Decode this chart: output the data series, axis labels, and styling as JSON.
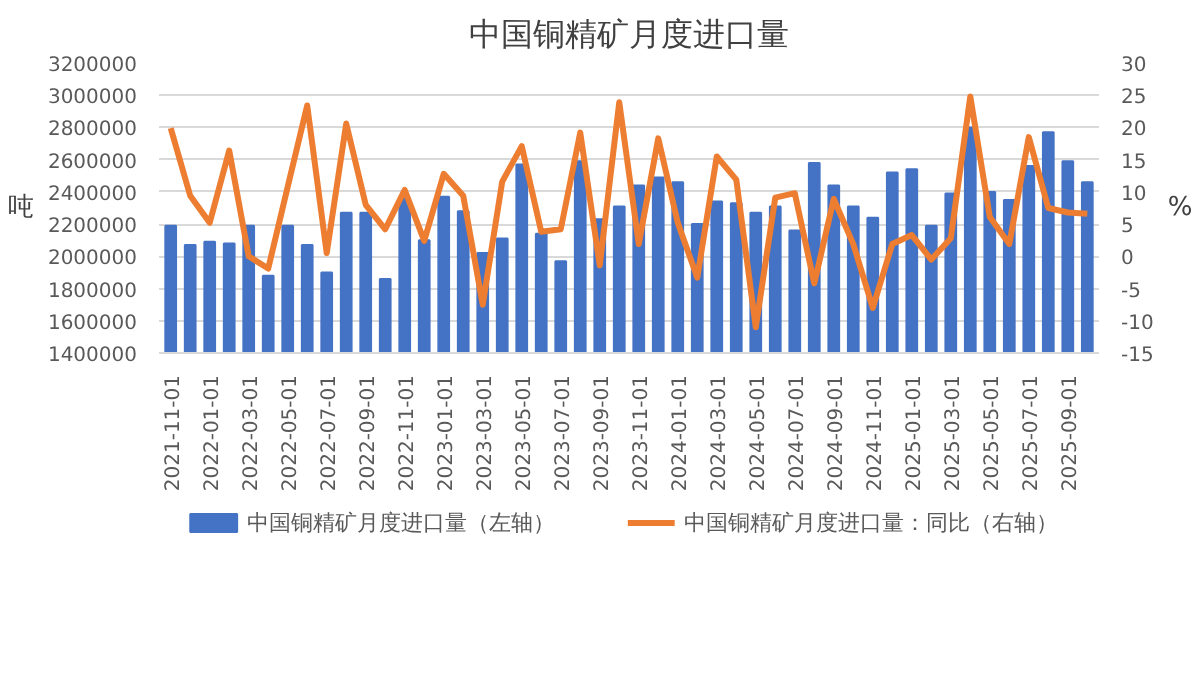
{
  "chart_data": {
    "type": "bar",
    "title": "中国铜精矿月度进口量",
    "ylabel": "吨",
    "y2label": "%",
    "categories": [
      "2021-11-01",
      null,
      "2022-01-01",
      null,
      "2022-03-01",
      null,
      "2022-05-01",
      null,
      "2022-07-01",
      null,
      "2022-09-01",
      null,
      "2022-11-01",
      null,
      "2023-01-01",
      null,
      "2023-03-01",
      null,
      "2023-05-01",
      null,
      "2023-07-01",
      null,
      "2023-09-01",
      null,
      "2023-11-01",
      null,
      "2024-01-01",
      null,
      "2024-03-01",
      null,
      "2024-05-01",
      null,
      "2024-07-01",
      null,
      "2024-09-01",
      null,
      "2024-11-01",
      null,
      "2025-01-01",
      null,
      "2025-03-01",
      null,
      "2025-05-01",
      null,
      "2025-07-01",
      null,
      "2025-09-01",
      null
    ],
    "series": [
      {
        "name": "中国铜精矿月度进口量（左轴）",
        "color": "#4472c4",
        "values": [
          2190000,
          2070000,
          2090000,
          2080000,
          2190000,
          1880000,
          2190000,
          2070000,
          1900000,
          2270000,
          2270000,
          1860000,
          2360000,
          2100000,
          2370000,
          2280000,
          2020000,
          2110000,
          2570000,
          2140000,
          1970000,
          2590000,
          2230000,
          2310000,
          2440000,
          2490000,
          2460000,
          2200000,
          2340000,
          2330000,
          2270000,
          2310000,
          2160000,
          2580000,
          2440000,
          2310000,
          2240000,
          2520000,
          2540000,
          2190000,
          2390000,
          2800000,
          2400000,
          2350000,
          2560000,
          2770000,
          2590000,
          2460000
        ]
      },
      {
        "name": "中国铜精矿月度进口量：同比（右轴）",
        "type": "line",
        "axis": "y2",
        "color": "#ed7d31",
        "values": [
          19.9,
          9.4,
          5.2,
          16.4,
          0.0,
          -1.9,
          10.8,
          23.4,
          0.5,
          20.6,
          8.0,
          4.2,
          10.3,
          2.4,
          12.8,
          9.4,
          -7.5,
          11.6,
          17.1,
          3.8,
          4.2,
          19.2,
          -1.4,
          23.9,
          1.9,
          18.3,
          5.2,
          -3.3,
          15.5,
          11.9,
          -11.0,
          9.1,
          9.8,
          -4.2,
          8.9,
          1.9,
          -8.0,
          1.9,
          3.3,
          -0.5,
          2.8,
          24.8,
          6.1,
          1.9,
          18.5,
          7.5,
          6.8,
          6.6
        ]
      }
    ],
    "ylim": [
      1400000,
      3200000
    ],
    "yticks": [
      1400000,
      1600000,
      1800000,
      2000000,
      2200000,
      2400000,
      2600000,
      2800000,
      3000000,
      3200000
    ],
    "y2lim": [
      -15,
      30
    ],
    "y2ticks": [
      -15,
      -10,
      -5,
      0,
      5,
      10,
      15,
      20,
      25,
      30
    ],
    "grid": "y",
    "legend": "bottom",
    "line_style": "solid",
    "marker": "none"
  }
}
